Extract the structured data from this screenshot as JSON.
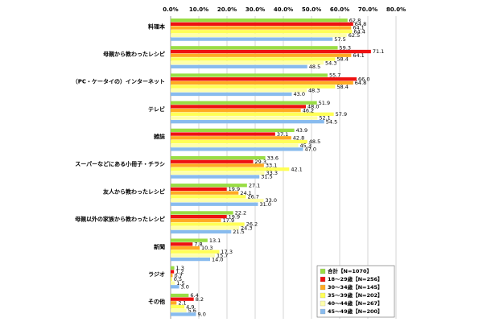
{
  "chart_data": {
    "type": "bar",
    "orientation": "horizontal",
    "categories": [
      "料理本",
      "母親から教わったレシピ",
      "（PC・ケータイの）インターネット",
      "テレビ",
      "雑誌",
      "スーパーなどにある小冊子・チラシ",
      "友人から教わったレシピ",
      "母親以外の家族から教わったレシピ",
      "新聞",
      "ラジオ",
      "その他"
    ],
    "series": [
      {
        "name": "合計【N=1070】",
        "color": "#99dd44",
        "values": [
          62.8,
          59.3,
          55.7,
          51.9,
          43.9,
          33.6,
          27.1,
          22.2,
          13.1,
          1.3,
          6.4
        ],
        "value_labels": [
          "62.8",
          "59.3",
          "55.7",
          "51.9",
          "43.9",
          "33.6",
          "27.1",
          "22.2",
          "13.1",
          "1.3",
          "6.4"
        ]
      },
      {
        "name": "18～29歳【N=256】",
        "color": "#ee1111",
        "values": [
          64.8,
          71.1,
          66.0,
          48.0,
          37.1,
          29.3,
          19.9,
          19.9,
          7.8,
          1.2,
          8.2
        ],
        "value_labels": [
          "64.8",
          "71.1",
          "66.0",
          "48.0",
          "37.1",
          "29.3",
          "19.9",
          "19.9",
          "7.8",
          "1.2",
          "8.2"
        ]
      },
      {
        "name": "30～34歳【N=145】",
        "color": "#ffaa22",
        "values": [
          64.1,
          64.1,
          64.8,
          46.2,
          42.8,
          33.1,
          24.1,
          17.9,
          10.3,
          0.7,
          2.1
        ],
        "value_labels": [
          "64.1",
          "64.1",
          "64.8",
          "46.2",
          "42.8",
          "33.1",
          "24.1",
          "17.9",
          "10.3",
          "0.7",
          "2.1"
        ]
      },
      {
        "name": "35～39歳【N=202】",
        "color": "#ffff55",
        "values": [
          64.4,
          58.4,
          58.4,
          57.9,
          48.5,
          42.1,
          26.7,
          26.2,
          17.3,
          0.5,
          4.9
        ],
        "value_labels": [
          "64.4",
          "58.4",
          "58.4",
          "57.9",
          "48.5",
          "42.1",
          "26.7",
          "26.2",
          "17.3",
          "0.5",
          "4.9"
        ]
      },
      {
        "name": "40～44歳【N=267】",
        "color": "#ffffaa",
        "values": [
          62.5,
          54.3,
          48.3,
          52.1,
          45.3,
          33.3,
          33.0,
          24.3,
          15.7,
          1.5,
          5.6
        ],
        "value_labels": [
          "62.5",
          "54.3",
          "48.3",
          "52.1",
          "45.3",
          "33.3",
          "33.0",
          "24.3",
          "15.7",
          "1.5",
          "5.6"
        ]
      },
      {
        "name": "45～49歳【N=200】",
        "color": "#88bbee",
        "values": [
          57.5,
          48.5,
          43.0,
          54.5,
          47.0,
          31.5,
          31.0,
          21.5,
          14.0,
          3.0,
          9.0
        ],
        "value_labels": [
          "57.5",
          "48.5",
          "43.0",
          "54.5",
          "47.0",
          "31.5",
          "31.0",
          "21.5",
          "14.0",
          "3.0",
          "9.0"
        ]
      }
    ],
    "xlim": [
      0,
      80
    ],
    "xticks": [
      {
        "value": 0,
        "label": "0.0%"
      },
      {
        "value": 10,
        "label": "10.0%"
      },
      {
        "value": 20,
        "label": "20.0%"
      },
      {
        "value": 30,
        "label": "30.0%"
      },
      {
        "value": 40,
        "label": "40.0%"
      },
      {
        "value": 50,
        "label": "50.0%"
      },
      {
        "value": 60,
        "label": "60.0%"
      },
      {
        "value": 70,
        "label": "70.0%"
      },
      {
        "value": 80,
        "label": "80.0%"
      }
    ],
    "grid": true,
    "legend": "lower right"
  }
}
